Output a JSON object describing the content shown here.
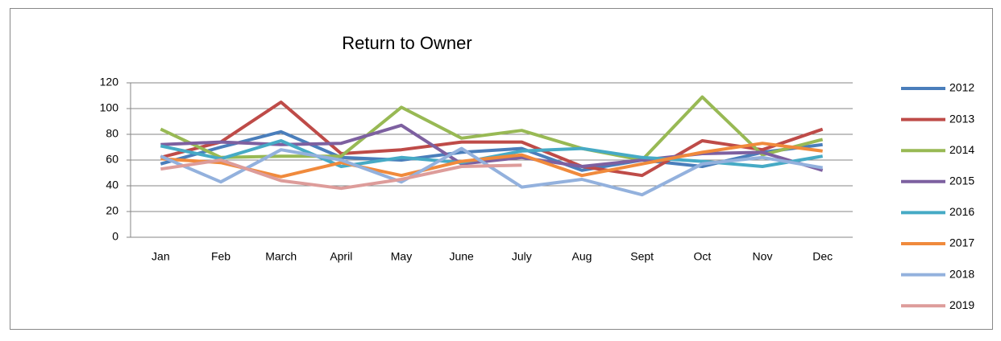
{
  "chart_data": {
    "type": "line",
    "title": "Return to Owner",
    "categories": [
      "Jan",
      "Feb",
      "March",
      "April",
      "May",
      "June",
      "July",
      "Aug",
      "Sept",
      "Oct",
      "Nov",
      "Dec"
    ],
    "series": [
      {
        "name": "2012",
        "color": "#4a7ebb",
        "values": [
          57,
          70,
          82,
          62,
          60,
          66,
          69,
          52,
          60,
          55,
          66,
          72
        ]
      },
      {
        "name": "2013",
        "color": "#be4b48",
        "values": [
          62,
          74,
          105,
          65,
          68,
          74,
          74,
          55,
          48,
          75,
          68,
          84
        ]
      },
      {
        "name": "2014",
        "color": "#98b954",
        "values": [
          84,
          62,
          63,
          63,
          101,
          77,
          83,
          69,
          60,
          109,
          64,
          76
        ]
      },
      {
        "name": "2015",
        "color": "#7d60a0",
        "values": [
          72,
          74,
          72,
          73,
          87,
          57,
          62,
          55,
          60,
          65,
          66,
          52
        ]
      },
      {
        "name": "2016",
        "color": "#46aac5",
        "values": [
          71,
          61,
          75,
          55,
          62,
          58,
          67,
          69,
          62,
          59,
          55,
          63
        ]
      },
      {
        "name": "2017",
        "color": "#f08a3c",
        "values": [
          61,
          58,
          47,
          58,
          48,
          59,
          64,
          48,
          57,
          66,
          73,
          67
        ]
      },
      {
        "name": "2018",
        "color": "#93b1dd",
        "values": [
          63,
          43,
          68,
          60,
          43,
          69,
          39,
          45,
          33,
          57,
          62,
          54
        ]
      },
      {
        "name": "2019",
        "color": "#dd9c9a",
        "values": [
          53,
          60,
          44,
          38,
          45,
          55,
          56,
          null,
          null,
          null,
          null,
          null
        ]
      }
    ],
    "ylim": [
      0,
      120
    ],
    "yticks": [
      0,
      20,
      40,
      60,
      80,
      100,
      120
    ],
    "grid": true,
    "legend": "right"
  }
}
